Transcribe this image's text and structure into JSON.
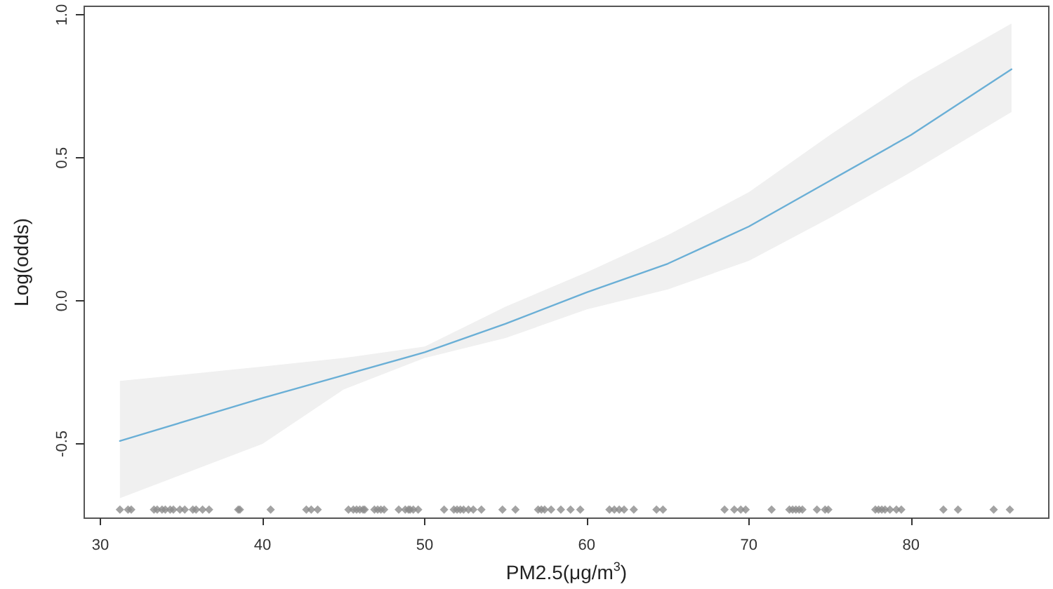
{
  "chart_data": {
    "type": "line",
    "xlabel": "PM2.5(μg/m$^{3}$)",
    "ylabel": "Log(odds)",
    "xlim": [
      29,
      88.5
    ],
    "ylim": [
      -0.76,
      1.03
    ],
    "xticks": [
      30,
      40,
      50,
      60,
      70,
      80
    ],
    "yticks": [
      -0.5,
      {
        "value": 0,
        "label": "0.0"
      },
      0.5,
      {
        "value": 1,
        "label": "1.0"
      }
    ],
    "marker": "none",
    "series": [
      {
        "color": "#6aafd6",
        "x": [
          31.2,
          40,
          45,
          50,
          55,
          60,
          65,
          70,
          75,
          80,
          86.2
        ],
        "values": [
          -0.49,
          -0.34,
          -0.26,
          -0.18,
          -0.08,
          0.03,
          0.13,
          0.26,
          0.42,
          0.58,
          0.81
        ],
        "lower": [
          -0.69,
          -0.5,
          -0.31,
          -0.2,
          -0.13,
          -0.03,
          0.04,
          0.14,
          0.29,
          0.45,
          0.66
        ],
        "upper": [
          -0.28,
          -0.23,
          -0.2,
          -0.16,
          -0.02,
          0.1,
          0.23,
          0.38,
          0.58,
          0.77,
          0.97
        ]
      },
      {
        "type": "scatter",
        "marker": "diamond",
        "color": "#8c8c8c",
        "x": [
          31.2,
          31.7,
          31.9,
          33.3,
          33.5,
          33.8,
          34.0,
          34.3,
          34.5,
          34.9,
          35.2,
          35.7,
          35.9,
          36.3,
          36.7,
          38.5,
          38.6,
          40.5,
          42.7,
          43.0,
          43.4,
          45.3,
          45.6,
          45.8,
          46.0,
          46.2,
          46.3,
          46.9,
          47.1,
          47.3,
          47.5,
          48.4,
          48.8,
          49.0,
          49.1,
          49.3,
          49.6,
          51.2,
          51.8,
          52.0,
          52.2,
          52.4,
          52.7,
          53.0,
          53.5,
          54.8,
          55.6,
          57.0,
          57.2,
          57.4,
          57.8,
          58.4,
          59.0,
          59.6,
          61.4,
          61.7,
          62.0,
          62.3,
          62.9,
          64.3,
          64.7,
          68.5,
          69.1,
          69.5,
          69.8,
          71.4,
          72.5,
          72.7,
          72.9,
          73.1,
          73.3,
          74.2,
          74.7,
          74.9,
          77.8,
          78.0,
          78.2,
          78.4,
          78.7,
          79.1,
          79.4,
          82.0,
          82.9,
          85.1,
          86.1
        ],
        "values": [
          -0.73,
          -0.73,
          -0.73,
          -0.73,
          -0.73,
          -0.73,
          -0.73,
          -0.73,
          -0.73,
          -0.73,
          -0.73,
          -0.73,
          -0.73,
          -0.73,
          -0.73,
          -0.73,
          -0.73,
          -0.73,
          -0.73,
          -0.73,
          -0.73,
          -0.73,
          -0.73,
          -0.73,
          -0.73,
          -0.73,
          -0.73,
          -0.73,
          -0.73,
          -0.73,
          -0.73,
          -0.73,
          -0.73,
          -0.73,
          -0.73,
          -0.73,
          -0.73,
          -0.73,
          -0.73,
          -0.73,
          -0.73,
          -0.73,
          -0.73,
          -0.73,
          -0.73,
          -0.73,
          -0.73,
          -0.73,
          -0.73,
          -0.73,
          -0.73,
          -0.73,
          -0.73,
          -0.73,
          -0.73,
          -0.73,
          -0.73,
          -0.73,
          -0.73,
          -0.73,
          -0.73,
          -0.73,
          -0.73,
          -0.73,
          -0.73,
          -0.73,
          -0.73,
          -0.73,
          -0.73,
          -0.73,
          -0.73,
          -0.73,
          -0.73,
          -0.73,
          -0.73,
          -0.73,
          -0.73,
          -0.73,
          -0.73,
          -0.73,
          -0.73,
          -0.73,
          -0.73,
          -0.73,
          -0.73
        ]
      }
    ]
  }
}
